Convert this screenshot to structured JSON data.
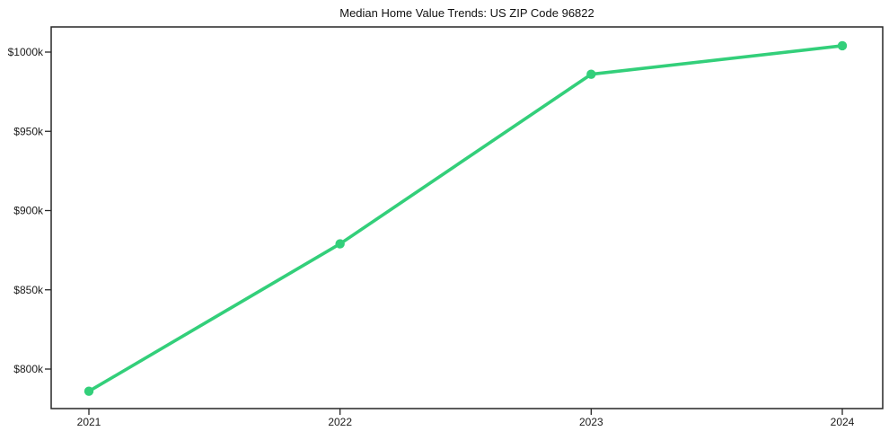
{
  "chart_data": {
    "type": "line",
    "title": "Median Home Value Trends: US ZIP Code 96822",
    "x": [
      2021,
      2022,
      2023,
      2024
    ],
    "x_tick_labels": [
      "2021",
      "2022",
      "2023",
      "2024"
    ],
    "values": [
      786,
      879,
      986,
      1004
    ],
    "unit": "thousands of USD (as shown by $...k tick labels)",
    "y_ticks": [
      800,
      850,
      900,
      950,
      1000
    ],
    "y_tick_labels": [
      "$800k",
      "$850k",
      "$900k",
      "$950k",
      "$1000k"
    ],
    "ylim": [
      775,
      1016
    ],
    "xlabel": "",
    "ylabel": "",
    "grid": false,
    "legend_position": "none",
    "line_color": "#33cf7a",
    "marker": "circle",
    "axis_color": "#262626",
    "text_color": "#1a1a1a",
    "background_color": "#ffffff"
  }
}
